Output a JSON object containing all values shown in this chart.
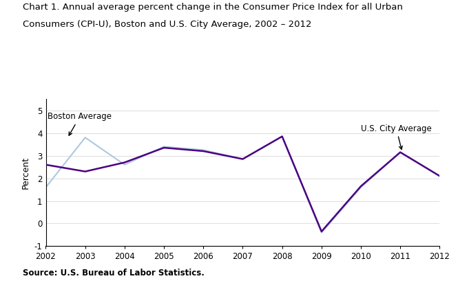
{
  "years": [
    2002,
    2003,
    2004,
    2005,
    2006,
    2007,
    2008,
    2009,
    2010,
    2011,
    2012
  ],
  "boston": [
    1.6,
    3.8,
    2.6,
    3.4,
    3.25,
    2.85,
    3.85,
    -0.4,
    1.6,
    3.15,
    2.1
  ],
  "us": [
    2.6,
    2.3,
    2.7,
    3.35,
    3.2,
    2.85,
    3.85,
    -0.35,
    1.65,
    3.15,
    2.1
  ],
  "boston_color": "#adc8e0",
  "us_color": "#4b0082",
  "title_line1": "Chart 1. Annual average percent change in the Consumer Price Index for all Urban",
  "title_line2": "Consumers (CPI-U), Boston and U.S. City Average, 2002 – 2012",
  "ylabel": "Percent",
  "source": "Source: U.S. Bureau of Labor Statistics.",
  "ylim": [
    -1,
    5.5
  ],
  "yticks": [
    -1,
    0,
    1,
    2,
    3,
    4,
    5
  ],
  "background_color": "#ffffff",
  "title_fontsize": 9.5,
  "tick_fontsize": 8.5,
  "ylabel_fontsize": 9,
  "annotation_fontsize": 8.5,
  "source_fontsize": 8.5
}
